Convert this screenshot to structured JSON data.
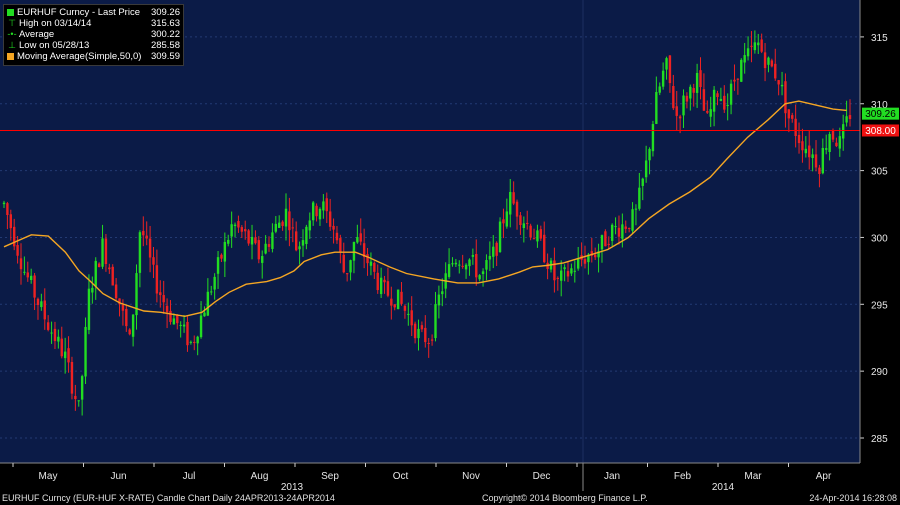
{
  "legend": {
    "title": "EURHUF Curncy - Last Price",
    "last": "309.26",
    "high_label": "High on 03/14/14",
    "high_value": "315.63",
    "avg_label": "Average",
    "avg_value": "300.22",
    "low_label": "Low on 05/28/13",
    "low_value": "285.58",
    "ma_label": "Moving Average(Simple,50,0)",
    "ma_value": "309.59"
  },
  "footer": {
    "left": "EURHUF Curncy (EUR-HUF X-RATE) Candle Chart  Daily 24APR2013-24APR2014",
    "center": "Copyright© 2014 Bloomberg Finance L.P.",
    "right": "24-Apr-2014 16:28:08"
  },
  "colors": {
    "background": "#0b1b47",
    "up_candle": "#22dd22",
    "down_candle": "#ee2222",
    "moving_average": "#f5a623",
    "reference_line": "#ff0000",
    "last_price_tag": "#22dd22",
    "reference_tag": "#ee1111",
    "grid": "#233a73"
  },
  "chart_data": {
    "type": "candlestick",
    "title": "EURHUF Curncy - Last Price",
    "x_months": [
      "May",
      "Jun",
      "Jul",
      "Aug",
      "Sep",
      "Oct",
      "Nov",
      "Dec",
      "Jan",
      "Feb",
      "Mar",
      "Apr"
    ],
    "x_years": [
      "2013",
      "2014"
    ],
    "ylim": [
      283,
      319
    ],
    "y_ticks": [
      285,
      290,
      295,
      300,
      305,
      310,
      315
    ],
    "grid": "horizontal dotted",
    "last_price": 309.26,
    "reference_line": 308.0,
    "high": 315.63,
    "low": 285.58,
    "average": 300.22,
    "moving_average": [
      {
        "x": 0,
        "y": 299.3
      },
      {
        "x": 0.8,
        "y": 300.2
      },
      {
        "x": 1.3,
        "y": 300.1
      },
      {
        "x": 1.8,
        "y": 298.9
      },
      {
        "x": 2.2,
        "y": 297.5
      },
      {
        "x": 2.5,
        "y": 296.8
      },
      {
        "x": 2.9,
        "y": 295.8
      },
      {
        "x": 3.4,
        "y": 295.1
      },
      {
        "x": 4.1,
        "y": 294.5
      },
      {
        "x": 4.6,
        "y": 294.4
      },
      {
        "x": 5.3,
        "y": 294.1
      },
      {
        "x": 5.8,
        "y": 294.4
      },
      {
        "x": 6.2,
        "y": 295.2
      },
      {
        "x": 6.6,
        "y": 295.9
      },
      {
        "x": 7.1,
        "y": 296.5
      },
      {
        "x": 7.7,
        "y": 296.7
      },
      {
        "x": 8.1,
        "y": 297.0
      },
      {
        "x": 8.5,
        "y": 297.5
      },
      {
        "x": 8.8,
        "y": 298.2
      },
      {
        "x": 9.3,
        "y": 298.7
      },
      {
        "x": 9.7,
        "y": 298.9
      },
      {
        "x": 10.3,
        "y": 298.9
      },
      {
        "x": 10.7,
        "y": 298.5
      },
      {
        "x": 11.3,
        "y": 297.8
      },
      {
        "x": 11.8,
        "y": 297.3
      },
      {
        "x": 12.6,
        "y": 296.9
      },
      {
        "x": 13.3,
        "y": 296.6
      },
      {
        "x": 13.9,
        "y": 296.6
      },
      {
        "x": 14.5,
        "y": 296.9
      },
      {
        "x": 15.1,
        "y": 297.4
      },
      {
        "x": 15.5,
        "y": 297.8
      },
      {
        "x": 15.9,
        "y": 297.9
      },
      {
        "x": 16.4,
        "y": 298.1
      },
      {
        "x": 16.8,
        "y": 298.4
      },
      {
        "x": 17.2,
        "y": 298.7
      },
      {
        "x": 17.7,
        "y": 299.1
      },
      {
        "x": 18.3,
        "y": 300.0
      },
      {
        "x": 18.9,
        "y": 301.4
      },
      {
        "x": 19.5,
        "y": 302.5
      },
      {
        "x": 20.1,
        "y": 303.4
      },
      {
        "x": 20.7,
        "y": 304.5
      },
      {
        "x": 21.2,
        "y": 305.9
      },
      {
        "x": 21.8,
        "y": 307.5
      },
      {
        "x": 22.4,
        "y": 308.8
      },
      {
        "x": 22.9,
        "y": 310.0
      },
      {
        "x": 23.3,
        "y": 310.2
      },
      {
        "x": 23.8,
        "y": 309.9
      },
      {
        "x": 24.3,
        "y": 309.6
      },
      {
        "x": 24.7,
        "y": 309.5
      }
    ],
    "price_path": [
      {
        "x": 0,
        "y": 302.5
      },
      {
        "x": 0.6,
        "y": 297.5
      },
      {
        "x": 1.2,
        "y": 294.0
      },
      {
        "x": 1.8,
        "y": 291.0
      },
      {
        "x": 2.2,
        "y": 287.0
      },
      {
        "x": 2.5,
        "y": 296.0
      },
      {
        "x": 2.9,
        "y": 299.5
      },
      {
        "x": 3.3,
        "y": 296.0
      },
      {
        "x": 3.7,
        "y": 292.0
      },
      {
        "x": 4.0,
        "y": 301.0
      },
      {
        "x": 4.4,
        "y": 297.0
      },
      {
        "x": 4.8,
        "y": 294.5
      },
      {
        "x": 5.1,
        "y": 293.5
      },
      {
        "x": 5.5,
        "y": 292.0
      },
      {
        "x": 5.9,
        "y": 295.0
      },
      {
        "x": 6.3,
        "y": 298.0
      },
      {
        "x": 6.7,
        "y": 301.0
      },
      {
        "x": 7.1,
        "y": 300.0
      },
      {
        "x": 7.5,
        "y": 298.5
      },
      {
        "x": 7.9,
        "y": 300.5
      },
      {
        "x": 8.3,
        "y": 302.0
      },
      {
        "x": 8.6,
        "y": 299.0
      },
      {
        "x": 8.9,
        "y": 301.5
      },
      {
        "x": 9.3,
        "y": 302.5
      },
      {
        "x": 9.7,
        "y": 300.5
      },
      {
        "x": 10.0,
        "y": 297.0
      },
      {
        "x": 10.3,
        "y": 300.0
      },
      {
        "x": 10.7,
        "y": 298.0
      },
      {
        "x": 11.1,
        "y": 296.0
      },
      {
        "x": 11.5,
        "y": 295.5
      },
      {
        "x": 11.9,
        "y": 294.0
      },
      {
        "x": 12.2,
        "y": 292.5
      },
      {
        "x": 12.5,
        "y": 292.5
      },
      {
        "x": 12.8,
        "y": 296.0
      },
      {
        "x": 13.2,
        "y": 298.5
      },
      {
        "x": 13.6,
        "y": 298.5
      },
      {
        "x": 14.0,
        "y": 297.0
      },
      {
        "x": 14.4,
        "y": 299.0
      },
      {
        "x": 14.8,
        "y": 303.0
      },
      {
        "x": 15.2,
        "y": 301.5
      },
      {
        "x": 15.6,
        "y": 300.0
      },
      {
        "x": 15.9,
        "y": 298.5
      },
      {
        "x": 16.2,
        "y": 296.5
      },
      {
        "x": 16.6,
        "y": 297.5
      },
      {
        "x": 17.0,
        "y": 298.5
      },
      {
        "x": 17.4,
        "y": 299.0
      },
      {
        "x": 17.8,
        "y": 300.5
      },
      {
        "x": 18.2,
        "y": 301.0
      },
      {
        "x": 18.5,
        "y": 301.5
      },
      {
        "x": 18.8,
        "y": 305.0
      },
      {
        "x": 19.1,
        "y": 310.0
      },
      {
        "x": 19.4,
        "y": 313.0
      },
      {
        "x": 19.7,
        "y": 309.0
      },
      {
        "x": 20.0,
        "y": 310.5
      },
      {
        "x": 20.3,
        "y": 312.0
      },
      {
        "x": 20.6,
        "y": 308.5
      },
      {
        "x": 20.9,
        "y": 311.0
      },
      {
        "x": 21.2,
        "y": 310.0
      },
      {
        "x": 21.5,
        "y": 312.5
      },
      {
        "x": 21.8,
        "y": 313.5
      },
      {
        "x": 22.1,
        "y": 314.5
      },
      {
        "x": 22.4,
        "y": 313.0
      },
      {
        "x": 22.7,
        "y": 312.0
      },
      {
        "x": 23.0,
        "y": 309.0
      },
      {
        "x": 23.3,
        "y": 307.5
      },
      {
        "x": 23.6,
        "y": 306.5
      },
      {
        "x": 23.9,
        "y": 305.5
      },
      {
        "x": 24.2,
        "y": 308.0
      },
      {
        "x": 24.5,
        "y": 307.0
      },
      {
        "x": 24.8,
        "y": 309.3
      }
    ]
  }
}
